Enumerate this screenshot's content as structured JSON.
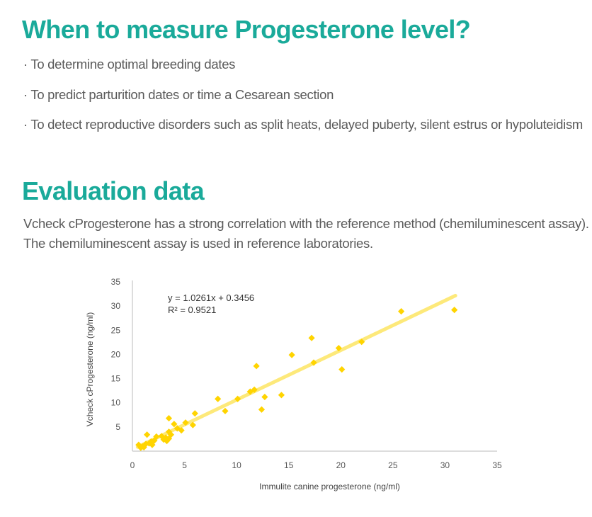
{
  "section1": {
    "title": "When to measure Progesterone level?",
    "bullets": [
      "· To determine optimal breeding dates",
      "· To predict parturition dates or time a Cesarean section",
      "· To detect reproductive disorders such as split heats, delayed puberty, silent estrus or hypoluteidism"
    ]
  },
  "section2": {
    "title": "Evaluation data",
    "description_line1": "Vcheck cProgesterone has a strong correlation with the reference method (chemiluminescent assay).",
    "description_line2": "The chemiluminescent assay is used in reference laboratories."
  },
  "colors": {
    "heading": "#1aaa9a",
    "text": "#5a5a5a",
    "points": "#ffd400",
    "trendline": "#fde97a",
    "axis": "#bbbbbb"
  },
  "chart_data": {
    "type": "scatter",
    "xlabel": "Immulite canine progesterone (ng/ml)",
    "ylabel": "Vcheck cProgesterone (ng/ml)",
    "xlim": [
      0,
      35
    ],
    "ylim": [
      0,
      35
    ],
    "xticks": [
      "0",
      "5",
      "10",
      "15",
      "20",
      "25",
      "30",
      "35"
    ],
    "yticks": [
      "5",
      "10",
      "15",
      "20",
      "25",
      "30",
      "35"
    ],
    "marker": "diamond",
    "grid": false,
    "equation": "y = 1.0261x + 0.3456",
    "r_squared": "R² = 0.9521",
    "trendline": {
      "slope": 1.0261,
      "intercept": 0.3456,
      "x_range": [
        0.5,
        31
      ]
    },
    "points": [
      [
        0.6,
        1.3
      ],
      [
        0.8,
        0.7
      ],
      [
        1.0,
        1.0
      ],
      [
        1.1,
        0.8
      ],
      [
        1.3,
        1.5
      ],
      [
        1.4,
        3.4
      ],
      [
        1.6,
        1.6
      ],
      [
        1.8,
        2.0
      ],
      [
        1.9,
        1.3
      ],
      [
        2.1,
        2.2
      ],
      [
        2.3,
        3.0
      ],
      [
        2.8,
        3.1
      ],
      [
        3.0,
        2.4
      ],
      [
        3.2,
        2.8
      ],
      [
        3.3,
        2.1
      ],
      [
        3.5,
        2.6
      ],
      [
        3.5,
        4.0
      ],
      [
        3.5,
        6.8
      ],
      [
        3.7,
        3.4
      ],
      [
        4.0,
        5.6
      ],
      [
        4.3,
        4.7
      ],
      [
        4.7,
        4.3
      ],
      [
        5.1,
        5.9
      ],
      [
        5.8,
        5.4
      ],
      [
        6.0,
        7.8
      ],
      [
        8.2,
        10.8
      ],
      [
        8.9,
        8.3
      ],
      [
        10.1,
        10.8
      ],
      [
        11.3,
        12.3
      ],
      [
        11.7,
        12.7
      ],
      [
        11.9,
        17.6
      ],
      [
        12.4,
        8.6
      ],
      [
        12.7,
        11.2
      ],
      [
        14.3,
        11.6
      ],
      [
        15.3,
        19.9
      ],
      [
        17.2,
        23.4
      ],
      [
        17.4,
        18.3
      ],
      [
        19.8,
        21.3
      ],
      [
        20.1,
        16.9
      ],
      [
        22.0,
        22.6
      ],
      [
        25.8,
        28.9
      ],
      [
        30.9,
        29.2
      ]
    ]
  }
}
